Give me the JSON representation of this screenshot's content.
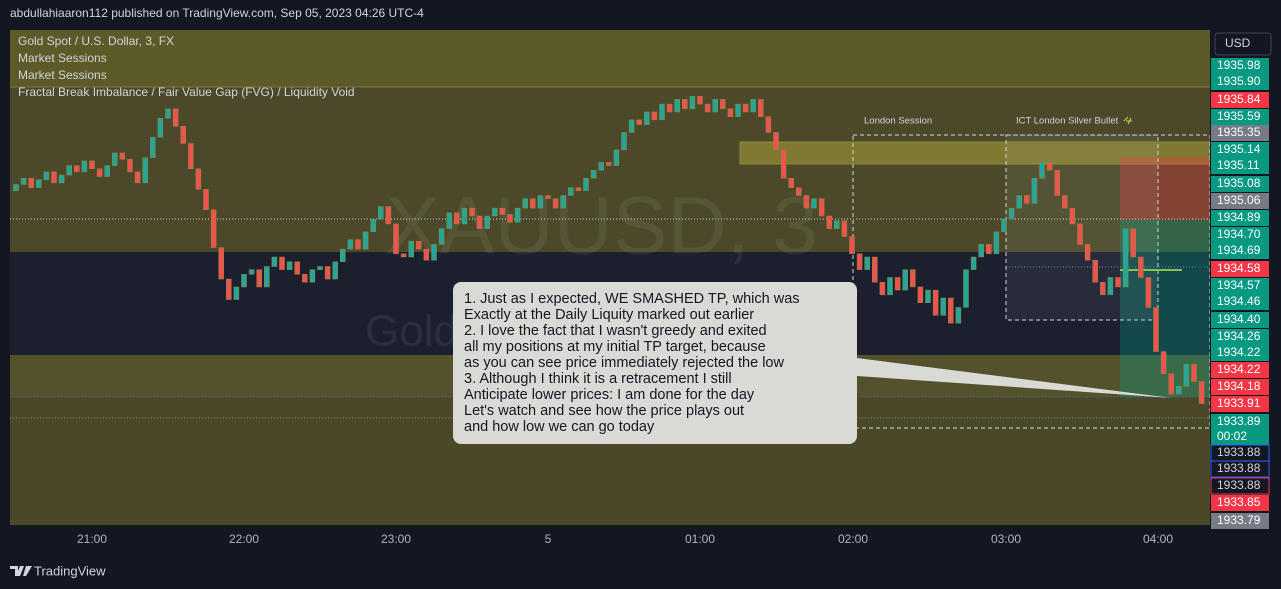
{
  "header": {
    "publisher": "abdullahiaaron112 published on TradingView.com, Sep 05, 2023 04:26 UTC-4"
  },
  "legend": [
    "Gold Spot / U.S. Dollar, 3, FX",
    "Market Sessions",
    "Market Sessions",
    "Fractal Break Imbalance / Fair Value Gap (FVG) / Liquidity Void"
  ],
  "watermark": {
    "symbol": "XAUUSD, 3",
    "description": "Gold Spot / U.S. Dollar"
  },
  "currency": "USD",
  "drawings": {
    "london_session": "London Session",
    "silver_bullet": "ICT London Silver Bullet"
  },
  "annotation": [
    "1. Just as I expected, WE SMASHED TP, which was",
    "Exactly at the Daily Liquity marked out earlier",
    "2. I love the fact that I wasn't greedy and exited",
    "all my positions at my initial TP target, because",
    "as you can see price immediately rejected the low",
    "3. Although I think it is a retracement I still",
    "Anticipate lower prices: I am done for the day",
    "Let's watch and see how the price plays out",
    "and how low we can go today"
  ],
  "chart_data": {
    "type": "candlestick",
    "ylim": [
      1933.14,
      1936.28
    ],
    "up_color": "#26a69a",
    "down_color": "#ef5350",
    "open": 1935.26,
    "closes": [
      1935.3,
      1935.34,
      1935.28,
      1935.33,
      1935.38,
      1935.31,
      1935.36,
      1935.42,
      1935.38,
      1935.45,
      1935.4,
      1935.35,
      1935.42,
      1935.5,
      1935.46,
      1935.38,
      1935.31,
      1935.47,
      1935.6,
      1935.72,
      1935.78,
      1935.67,
      1935.56,
      1935.4,
      1935.27,
      1935.14,
      1934.9,
      1934.7,
      1934.57,
      1934.65,
      1934.73,
      1934.76,
      1934.65,
      1934.78,
      1934.84,
      1934.76,
      1934.81,
      1934.73,
      1934.68,
      1934.76,
      1934.78,
      1934.7,
      1934.81,
      1934.89,
      1934.95,
      1934.89,
      1935.0,
      1935.08,
      1935.16,
      1935.05,
      1934.86,
      1934.84,
      1934.94,
      1934.89,
      1934.82,
      1934.92,
      1935.02,
      1935.12,
      1935.05,
      1935.15,
      1935.1,
      1935.02,
      1935.1,
      1935.15,
      1935.11,
      1935.06,
      1935.15,
      1935.21,
      1935.15,
      1935.23,
      1935.21,
      1935.15,
      1935.23,
      1935.28,
      1935.26,
      1935.34,
      1935.39,
      1935.44,
      1935.42,
      1935.52,
      1935.63,
      1935.71,
      1935.68,
      1935.76,
      1935.71,
      1935.81,
      1935.76,
      1935.84,
      1935.78,
      1935.86,
      1935.81,
      1935.76,
      1935.84,
      1935.78,
      1935.73,
      1935.81,
      1935.76,
      1935.84,
      1935.73,
      1935.63,
      1935.52,
      1935.34,
      1935.28,
      1935.23,
      1935.15,
      1935.21,
      1935.1,
      1935.02,
      1935.07,
      1934.97,
      1934.86,
      1934.76,
      1934.84,
      1934.68,
      1934.6,
      1934.71,
      1934.63,
      1934.76,
      1934.65,
      1934.55,
      1934.63,
      1934.47,
      1934.58,
      1934.42,
      1934.52,
      1934.76,
      1934.84,
      1934.92,
      1934.86,
      1935.0,
      1935.08,
      1935.15,
      1935.23,
      1935.18,
      1935.34,
      1935.44,
      1935.39,
      1935.23,
      1935.15,
      1935.05,
      1934.92,
      1934.82,
      1934.68,
      1934.6,
      1934.71,
      1934.65,
      1935.02,
      1934.84,
      1934.71,
      1934.52,
      1934.24,
      1934.1,
      1933.97,
      1934.02,
      1934.16,
      1934.05,
      1933.91
    ]
  },
  "price_labels": [
    {
      "text": "1935.98",
      "color": "#089981"
    },
    {
      "text": "1935.90",
      "color": "#089981"
    },
    {
      "text": "1935.84",
      "color": "#f23645"
    },
    {
      "text": "1935.59",
      "color": "#089981"
    },
    {
      "text": "1935.35",
      "color": "#787b86"
    },
    {
      "text": "1935.14",
      "color": "#089981"
    },
    {
      "text": "1935.11",
      "color": "#089981"
    },
    {
      "text": "1935.08",
      "color": "#089981"
    },
    {
      "text": "1935.06",
      "color": "#787b86"
    },
    {
      "text": "1934.89",
      "color": "#089981"
    },
    {
      "text": "1934.70",
      "color": "#089981"
    },
    {
      "text": "1934.69",
      "color": "#089981"
    },
    {
      "text": "1934.58",
      "color": "#f23645"
    },
    {
      "text": "1934.57",
      "color": "#089981"
    },
    {
      "text": "1934.46",
      "color": "#089981"
    },
    {
      "text": "1934.40",
      "color": "#089981"
    },
    {
      "text": "1934.26",
      "color": "#089981"
    },
    {
      "text": "1934.22",
      "color": "#089981"
    },
    {
      "text": "1934.22",
      "color": "#f23645"
    },
    {
      "text": "1934.18",
      "color": "#f23645"
    },
    {
      "text": "1933.91",
      "color": "#f23645"
    },
    {
      "text": "1933.89",
      "color": "#089981",
      "sub": "00:02"
    },
    {
      "text": "1933.88",
      "color": "#2962ff",
      "style": "outline"
    },
    {
      "text": "1933.88",
      "color": "#2962ff",
      "style": "outline"
    },
    {
      "text": "1933.88",
      "color": "#f23645",
      "style": "outline"
    },
    {
      "text": "1933.85",
      "color": "#f23645"
    },
    {
      "text": "1933.79",
      "color": "#787b86"
    }
  ],
  "time_labels": [
    "21:00",
    "22:00",
    "23:00",
    "5",
    "01:00",
    "02:00",
    "03:00",
    "04:00"
  ],
  "footer": "TradingView"
}
